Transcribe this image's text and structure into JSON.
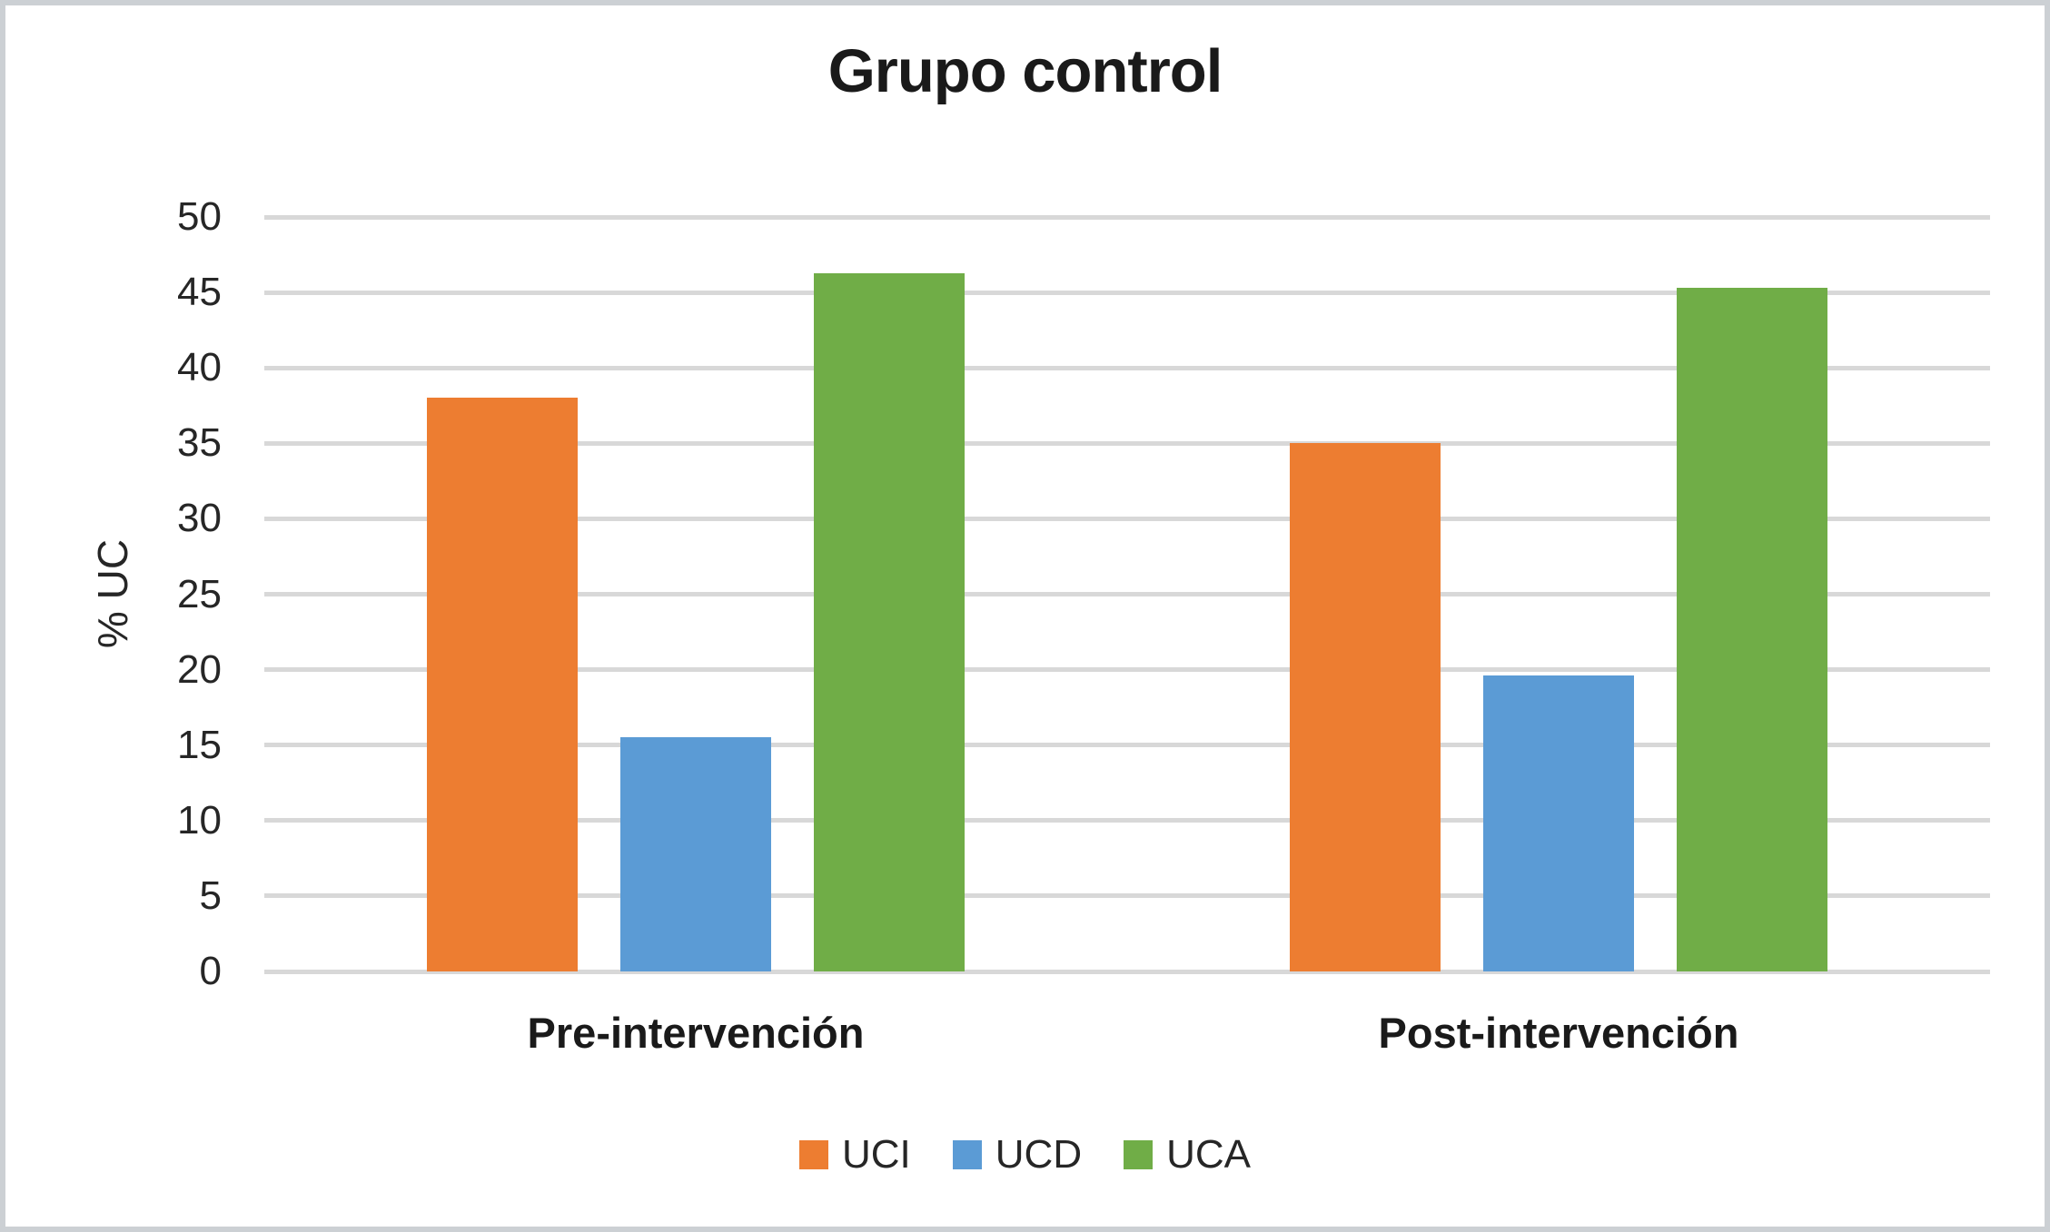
{
  "chart_data": {
    "type": "bar",
    "title": "Grupo control",
    "xlabel": "",
    "ylabel": "% UC",
    "categories": [
      "Pre-intervención",
      "Post-intervención"
    ],
    "series": [
      {
        "name": "UCI",
        "color": "#ED7D31",
        "values": [
          38.0,
          35.0
        ]
      },
      {
        "name": "UCD",
        "color": "#5B9BD5",
        "values": [
          15.5,
          19.6
        ]
      },
      {
        "name": "UCA",
        "color": "#70AD47",
        "values": [
          46.3,
          45.3
        ]
      }
    ],
    "ylim": [
      0,
      50
    ],
    "ytick_step": 5,
    "yticks": [
      0,
      5,
      10,
      15,
      20,
      25,
      30,
      35,
      40,
      45,
      50
    ],
    "grid": true,
    "gridline_color": "#d8d8d8",
    "legend_position": "bottom",
    "frame_border_color": "#ccd0d4"
  }
}
